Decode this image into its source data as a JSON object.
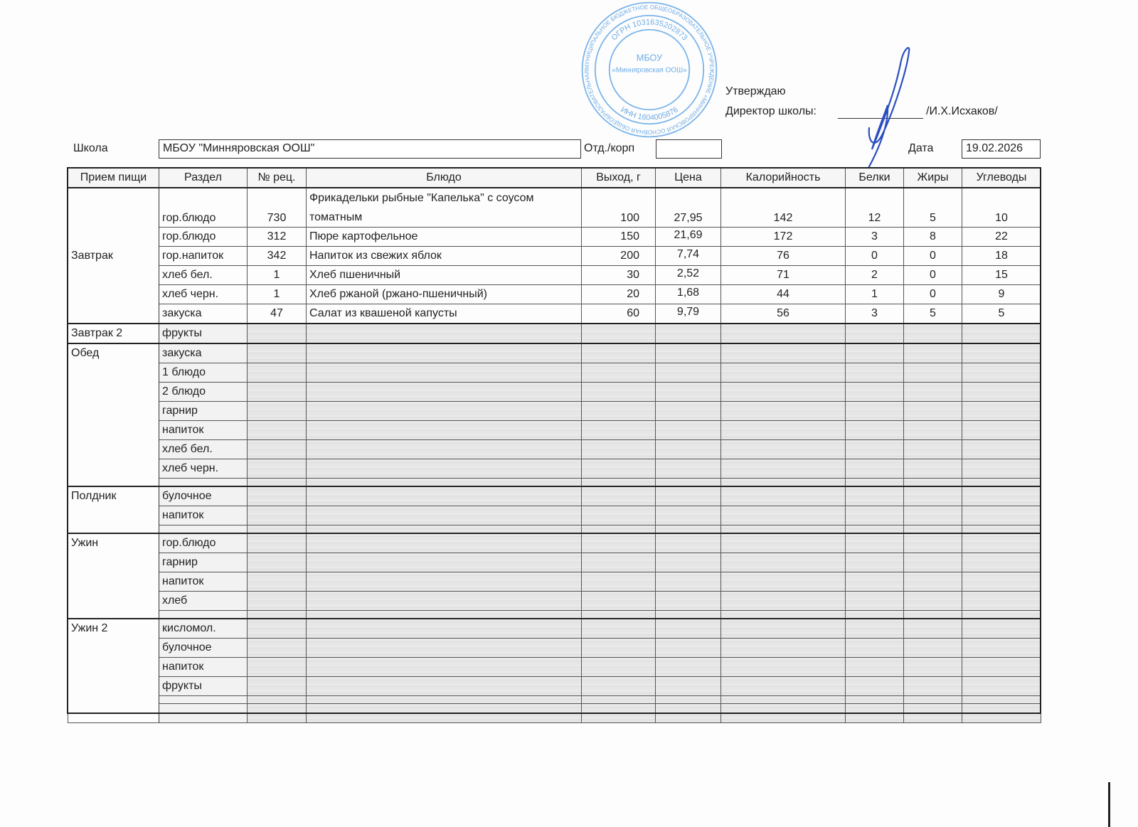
{
  "approval": {
    "approve_label": "Утверждаю",
    "director_label": "Директор школы:",
    "director_name": "/И.Х.Исхаков/"
  },
  "stamp": {
    "outer_text": "МУНИЦИПАЛЬНОЕ БЮДЖЕТНОЕ ОБЩЕОБРАЗОВАТЕЛЬНОЕ УЧРЕЖДЕНИЕ «МИННЯРОВСКАЯ ОСНОВНАЯ ОБЩЕОБРАЗОВАТЕЛЬНАЯ ШКОЛА» АКТАНЫШСКОГО МУНИЦИПАЛЬНОГО РАЙОНА РЕСПУБЛИКИ ТАТАРСТАН",
    "ogrn": "ОГРН 1031635202873",
    "inn": "ИНН 1604005876",
    "center_line1": "МБОУ",
    "center_line2": "«Минняровская ООШ»",
    "color": "#3b8fdc"
  },
  "signature_color": "#2c4fc0",
  "header": {
    "school_label": "Школа",
    "school_value": "МБОУ \"Минняровская ООШ\"",
    "dept_label": "Отд./корп",
    "dept_value": "",
    "date_label": "Дата",
    "date_value": "19.02.2026"
  },
  "table": {
    "columns": [
      "Прием пищи",
      "Раздел",
      "№ рец.",
      "Блюдо",
      "Выход, г",
      "Цена",
      "Калорийность",
      "Белки",
      "Жиры",
      "Углеводы"
    ],
    "groups": [
      {
        "meal": "Завтрак",
        "rows": [
          {
            "section": "гор.блюдо",
            "recipe": "730",
            "dish": "Фрикадельки рыбные \"Капелька\" с соусом томатным",
            "yield": "100",
            "price": "27,95",
            "kcal": "142",
            "protein": "12",
            "fat": "5",
            "carbs": "10"
          },
          {
            "section": "гор.блюдо",
            "recipe": "312",
            "dish": "Пюре картофельное",
            "yield": "150",
            "price": "21,69",
            "kcal": "172",
            "protein": "3",
            "fat": "8",
            "carbs": "22"
          },
          {
            "section": "гор.напиток",
            "recipe": "342",
            "dish": "Напиток из свежих яблок",
            "yield": "200",
            "price": "7,74",
            "kcal": "76",
            "protein": "0",
            "fat": "0",
            "carbs": "18"
          },
          {
            "section": "хлеб бел.",
            "recipe": "1",
            "dish": "Хлеб пшеничный",
            "yield": "30",
            "price": "2,52",
            "kcal": "71",
            "protein": "2",
            "fat": "0",
            "carbs": "15"
          },
          {
            "section": "хлеб черн.",
            "recipe": "1",
            "dish": "Хлеб ржаной (ржано-пшеничный)",
            "yield": "20",
            "price": "1,68",
            "kcal": "44",
            "protein": "1",
            "fat": "0",
            "carbs": "9"
          },
          {
            "section": "закуска",
            "recipe": "47",
            "dish": "Салат из квашеной капусты",
            "yield": "60",
            "price": "9,79",
            "kcal": "56",
            "protein": "3",
            "fat": "5",
            "carbs": "5"
          }
        ]
      },
      {
        "meal": "Завтрак 2",
        "rows": [
          {
            "section": "фрукты"
          }
        ]
      },
      {
        "meal": "Обед",
        "rows": [
          {
            "section": "закуска"
          },
          {
            "section": "1 блюдо"
          },
          {
            "section": "2 блюдо"
          },
          {
            "section": "гарнир"
          },
          {
            "section": "напиток"
          },
          {
            "section": "хлеб бел."
          },
          {
            "section": "хлеб черн."
          },
          {
            "section": "",
            "spacer": true
          }
        ]
      },
      {
        "meal": "Полдник",
        "rows": [
          {
            "section": "булочное"
          },
          {
            "section": "напиток"
          },
          {
            "section": "",
            "spacer": true
          }
        ]
      },
      {
        "meal": "Ужин",
        "rows": [
          {
            "section": "гор.блюдо"
          },
          {
            "section": "гарнир"
          },
          {
            "section": "напиток"
          },
          {
            "section": "хлеб"
          },
          {
            "section": "",
            "spacer": true
          }
        ]
      },
      {
        "meal": "Ужин 2",
        "rows": [
          {
            "section": "кисломол."
          },
          {
            "section": "булочное"
          },
          {
            "section": "напиток"
          },
          {
            "section": "фрукты"
          },
          {
            "section": "",
            "spacer": true
          },
          {
            "section": ""
          }
        ]
      }
    ]
  }
}
